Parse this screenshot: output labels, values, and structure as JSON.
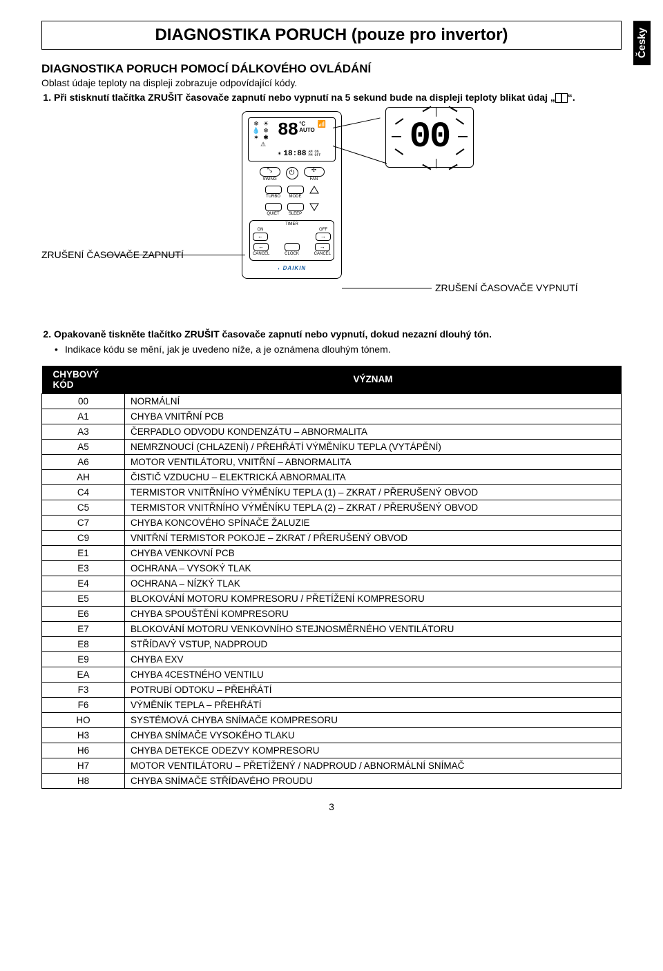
{
  "lang_tab": "Česky",
  "title": "DIAGNOSTIKA PORUCH (pouze pro invertor)",
  "subtitle": "DIAGNOSTIKA PORUCH POMOCÍ DÁLKOVÉHO OVLÁDÁNÍ",
  "intro": "Oblast údaje teploty na displeji zobrazuje odpovídající kódy.",
  "step1_prefix": "Při stisknutí tlačítka ZRUŠIT časovače zapnutí nebo vypnutí na 5 sekund bude na displeji teploty blikat údaj „",
  "step1_suffix": "“.",
  "remote": {
    "mode_icons": [
      "❄",
      "☀",
      "💧",
      "❄",
      "✶",
      "✱",
      "⚠"
    ],
    "big_digits": "88",
    "deg": "°C",
    "auto": "AUTO",
    "seg_small": "18:88",
    "am": "AM",
    "pm": "PM",
    "on": "ON",
    "off": "OFF",
    "swing": "SWING",
    "power_icon": "⏻",
    "fan": "FAN",
    "turbo": "TURBO",
    "mode": "MODE",
    "quiet": "QUIET",
    "sleep": "SLEEP",
    "timer": "TIMER",
    "on_btn": "ON",
    "off_btn": "OFF",
    "cancel": "CANCEL",
    "clock": "CLOCK",
    "brand": "DAIKIN"
  },
  "zoom_digits": "00",
  "callout_left": "ZRUŠENÍ ČASOVAČE ZAPNUTÍ",
  "callout_right": "ZRUŠENÍ ČASOVAČE VYPNUTÍ",
  "step2": "Opakovaně tiskněte tlačítko ZRUŠIT časovače zapnutí nebo vypnutí, dokud nezazní dlouhý tón.",
  "step2_bullet": "Indikace kódu se mění, jak je uvedeno níže, a je oznámena dlouhým tónem.",
  "table": {
    "header_code": "CHYBOVÝ KÓD",
    "header_meaning": "VÝZNAM",
    "rows": [
      {
        "code": "00",
        "meaning": "NORMÁLNÍ"
      },
      {
        "code": "A1",
        "meaning": "CHYBA VNITŘNÍ PCB"
      },
      {
        "code": "A3",
        "meaning": "ČERPADLO ODVODU KONDENZÁTU – ABNORMALITA"
      },
      {
        "code": "A5",
        "meaning": "NEMRZNOUCÍ (CHLAZENÍ) / PŘEHŘÁTÍ VÝMĚNÍKU TEPLA (VYTÁPĚNÍ)"
      },
      {
        "code": "A6",
        "meaning": "MOTOR VENTILÁTORU, VNITŘNÍ – ABNORMALITA"
      },
      {
        "code": "AH",
        "meaning": "ČISTIČ VZDUCHU – ELEKTRICKÁ ABNORMALITA"
      },
      {
        "code": "C4",
        "meaning": "TERMISTOR VNITŘNÍHO VÝMĚNÍKU TEPLA (1) – ZKRAT / PŘERUŠENÝ OBVOD"
      },
      {
        "code": "C5",
        "meaning": "TERMISTOR VNITŘNÍHO VÝMĚNÍKU TEPLA (2) – ZKRAT / PŘERUŠENÝ OBVOD"
      },
      {
        "code": "C7",
        "meaning": "CHYBA KONCOVÉHO SPÍNAČE ŽALUZIE"
      },
      {
        "code": "C9",
        "meaning": "VNITŘNÍ TERMISTOR POKOJE – ZKRAT / PŘERUŠENÝ OBVOD"
      },
      {
        "code": "E1",
        "meaning": "CHYBA VENKOVNÍ PCB"
      },
      {
        "code": "E3",
        "meaning": "OCHRANA – VYSOKÝ TLAK"
      },
      {
        "code": "E4",
        "meaning": "OCHRANA – NÍZKÝ TLAK"
      },
      {
        "code": "E5",
        "meaning": "BLOKOVÁNÍ MOTORU KOMPRESORU / PŘETÍŽENÍ KOMPRESORU"
      },
      {
        "code": "E6",
        "meaning": "CHYBA SPOUŠTĚNÍ KOMPRESORU"
      },
      {
        "code": "E7",
        "meaning": "BLOKOVÁNÍ MOTORU VENKOVNÍHO STEJNOSMĚRNÉHO VENTILÁTORU"
      },
      {
        "code": "E8",
        "meaning": "STŘÍDAVÝ VSTUP, NADPROUD"
      },
      {
        "code": "E9",
        "meaning": "CHYBA EXV"
      },
      {
        "code": "EA",
        "meaning": "CHYBA 4CESTNÉHO VENTILU"
      },
      {
        "code": "F3",
        "meaning": "POTRUBÍ ODTOKU – PŘEHŘÁTÍ"
      },
      {
        "code": "F6",
        "meaning": "VÝMĚNÍK TEPLA – PŘEHŘÁTÍ"
      },
      {
        "code": "HO",
        "meaning": "SYSTÉMOVÁ CHYBA SNÍMAČE KOMPRESORU"
      },
      {
        "code": "H3",
        "meaning": "CHYBA SNÍMAČE VYSOKÉHO TLAKU"
      },
      {
        "code": "H6",
        "meaning": "CHYBA DETEKCE ODEZVY KOMPRESORU"
      },
      {
        "code": "H7",
        "meaning": "MOTOR VENTILÁTORU – PŘETÍŽENÝ / NADPROUD / ABNORMÁLNÍ SNÍMAČ"
      },
      {
        "code": "H8",
        "meaning": "CHYBA SNÍMAČE STŘÍDAVÉHO PROUDU"
      }
    ]
  },
  "page_number": "3"
}
